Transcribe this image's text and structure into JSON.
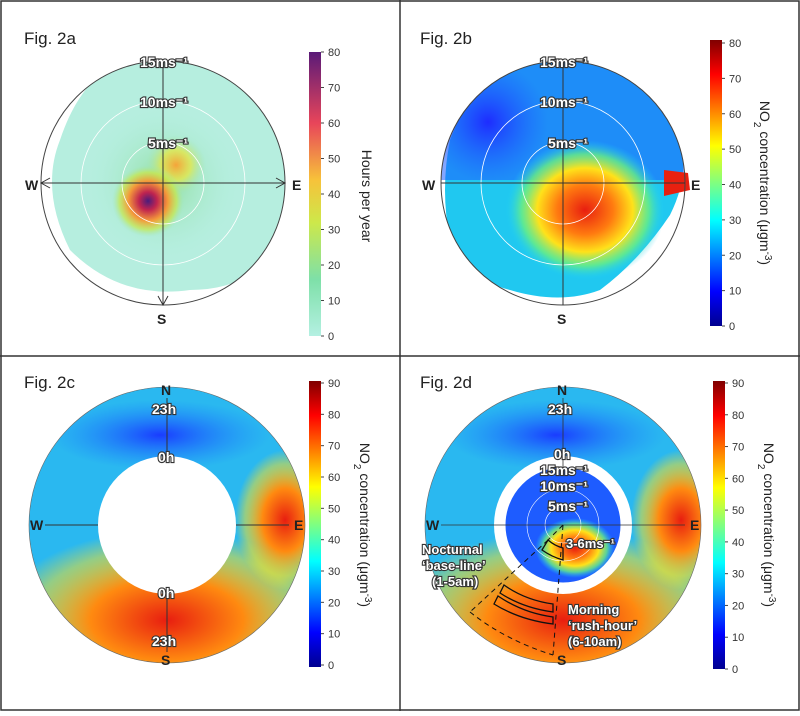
{
  "chart_data": [
    {
      "panel": "Fig. 2a",
      "type": "heatmap",
      "title": "Fig. 2a",
      "projection": "polar (wind speed radius, wind direction angle)",
      "compass": [
        "W",
        "E",
        "S"
      ],
      "rings": [
        "5ms⁻¹",
        "10ms⁻¹",
        "15ms⁻¹"
      ],
      "colorbar": {
        "label": "Hours per year",
        "range": [
          0,
          80
        ],
        "ticks": [
          "0",
          "10",
          "20",
          "30",
          "40",
          "50",
          "60",
          "70",
          "80"
        ]
      },
      "hotspots": [
        {
          "direction": "SW",
          "speed_ms": 4,
          "value": 80
        },
        {
          "direction": "NE",
          "speed_ms": 5,
          "value": 45
        }
      ]
    },
    {
      "panel": "Fig. 2b",
      "type": "heatmap",
      "title": "Fig. 2b",
      "projection": "polar (wind speed radius, wind direction angle)",
      "compass": [
        "W",
        "E",
        "S"
      ],
      "rings": [
        "5ms⁻¹",
        "10ms⁻¹",
        "15ms⁻¹"
      ],
      "colorbar": {
        "label_pre": "NO",
        "label_sub": "2",
        "label_post": " concentration (μgm",
        "label_sup": "-3",
        "label_end": ")",
        "range": [
          0,
          80
        ],
        "ticks": [
          "0",
          "10",
          "20",
          "30",
          "40",
          "50",
          "60",
          "70",
          "80"
        ]
      },
      "hotspots": [
        {
          "direction": "SE",
          "speed_ms": 4,
          "value": 72
        },
        {
          "direction": "E",
          "speed_ms": 15,
          "value": 78
        },
        {
          "direction": "NW",
          "speed_ms": 10,
          "value": 12
        }
      ]
    },
    {
      "panel": "Fig. 2c",
      "type": "heatmap",
      "title": "Fig. 2c",
      "projection": "polar (hour of day radius, wind direction angle)",
      "compass": [
        "N",
        "W",
        "E",
        "S"
      ],
      "ring_labels": [
        "23h",
        "0h",
        "0h",
        "23h"
      ],
      "colorbar": {
        "label_pre": "NO",
        "label_sub": "2",
        "label_post": " concentration (μgm",
        "label_sup": "-3",
        "label_end": ")",
        "range": [
          0,
          90
        ],
        "ticks": [
          "0",
          "10",
          "20",
          "30",
          "40",
          "50",
          "60",
          "70",
          "80",
          "90"
        ]
      }
    },
    {
      "panel": "Fig. 2d",
      "type": "heatmap",
      "title": "Fig. 2d",
      "projection": "polar hour ring with inset wind-speed polar plot",
      "compass": [
        "N",
        "W",
        "E",
        "S"
      ],
      "ring_labels": [
        "23h",
        "0h"
      ],
      "inner_rings": [
        "15ms⁻¹",
        "10ms⁻¹",
        "5ms⁻¹"
      ],
      "annotations": [
        {
          "text": "3-6ms⁻¹"
        },
        {
          "lines": [
            "Nocturnal",
            "‘base-line’",
            "(1-5am)"
          ]
        },
        {
          "lines": [
            "Morning",
            "‘rush-hour’",
            "(6-10am)"
          ]
        }
      ],
      "colorbar": {
        "label_pre": "NO",
        "label_sub": "2",
        "label_post": " concentration (μgm",
        "label_sup": "-3",
        "label_end": ")",
        "range": [
          0,
          90
        ],
        "ticks": [
          "0",
          "10",
          "20",
          "30",
          "40",
          "50",
          "60",
          "70",
          "80",
          "90"
        ]
      }
    }
  ],
  "colors": {
    "panel_border": "#333333",
    "grid": "#ffffff",
    "axis": "#444444"
  }
}
